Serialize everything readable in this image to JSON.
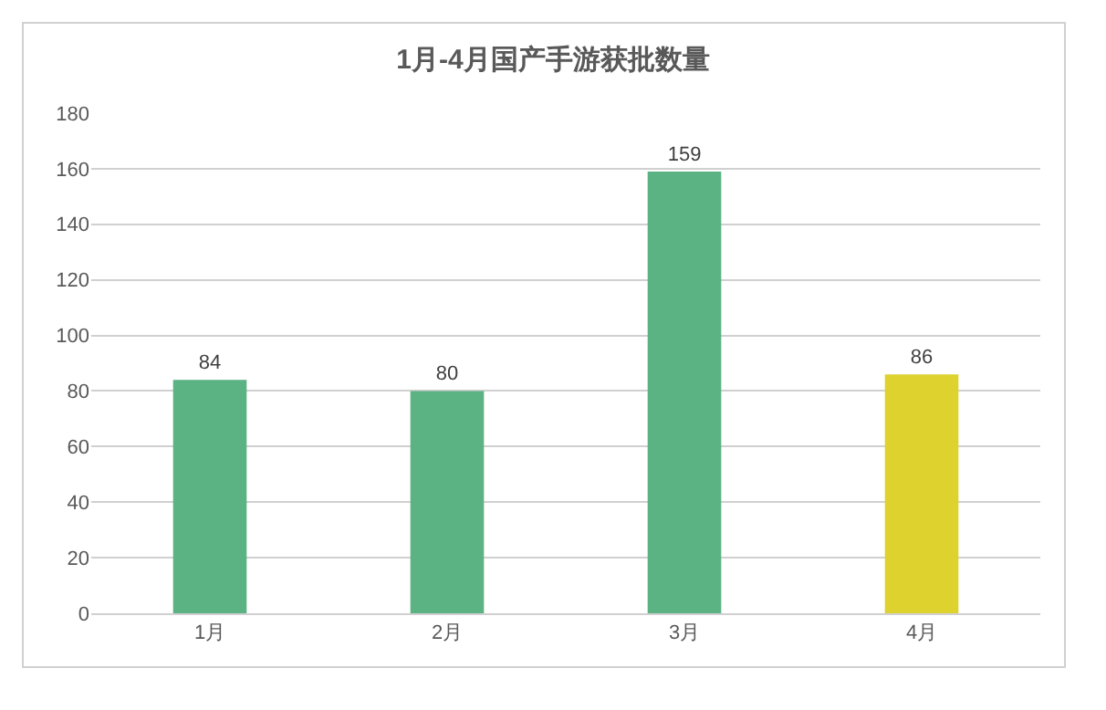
{
  "chart_data": {
    "type": "bar",
    "title": "1月-4月国产手游获批数量",
    "categories": [
      "1月",
      "2月",
      "3月",
      "4月"
    ],
    "values": [
      84,
      80,
      159,
      86
    ],
    "colors": [
      "#5bb283",
      "#5bb283",
      "#5bb283",
      "#ddd22e"
    ],
    "ylim": [
      0,
      180
    ],
    "yticks": [
      0,
      20,
      40,
      60,
      80,
      100,
      120,
      140,
      160,
      180
    ],
    "grid": "y",
    "data_labels": true,
    "legend": false
  }
}
